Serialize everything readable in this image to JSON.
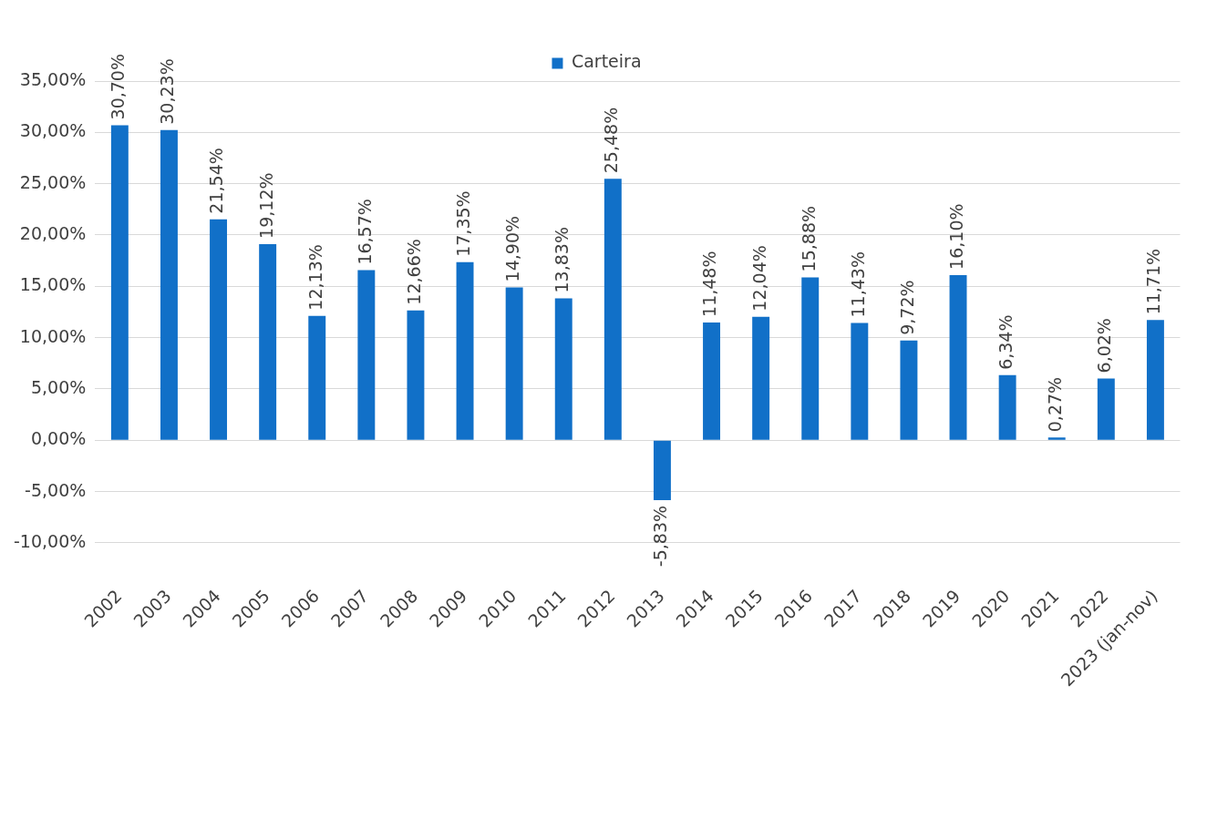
{
  "chart_data": {
    "type": "bar",
    "categories": [
      "2002",
      "2003",
      "2004",
      "2005",
      "2006",
      "2007",
      "2008",
      "2009",
      "2010",
      "2011",
      "2012",
      "2013",
      "2014",
      "2015",
      "2016",
      "2017",
      "2018",
      "2019",
      "2020",
      "2021",
      "2022",
      "2023 (jan-nov)"
    ],
    "series": [
      {
        "name": "Carteira",
        "color": "#1170c8",
        "values": [
          30.7,
          30.23,
          21.54,
          19.12,
          12.13,
          16.57,
          12.66,
          17.35,
          14.9,
          13.83,
          25.48,
          -5.83,
          11.48,
          12.04,
          15.88,
          11.43,
          9.72,
          16.1,
          6.34,
          0.27,
          6.02,
          11.71
        ],
        "value_labels": [
          "30,70%",
          "30,23%",
          "21,54%",
          "19,12%",
          "12,13%",
          "16,57%",
          "12,66%",
          "17,35%",
          "14,90%",
          "13,83%",
          "25,48%",
          "-5,83%",
          "11,48%",
          "12,04%",
          "15,88%",
          "11,43%",
          "9,72%",
          "16,10%",
          "6,34%",
          "0,27%",
          "6,02%",
          "11,71%"
        ]
      }
    ],
    "ylim": [
      -10,
      35
    ],
    "yticks": [
      {
        "value": -10,
        "label": "-10,00%"
      },
      {
        "value": -5,
        "label": "-5,00%"
      },
      {
        "value": 0,
        "label": "0,00%"
      },
      {
        "value": 5,
        "label": "5,00%"
      },
      {
        "value": 10,
        "label": "10,00%"
      },
      {
        "value": 15,
        "label": "15,00%"
      },
      {
        "value": 20,
        "label": "20,00%"
      },
      {
        "value": 25,
        "label": "25,00%"
      },
      {
        "value": 30,
        "label": "30,00%"
      },
      {
        "value": 35,
        "label": "35,00%"
      }
    ],
    "grid": "y",
    "legend": "top"
  }
}
